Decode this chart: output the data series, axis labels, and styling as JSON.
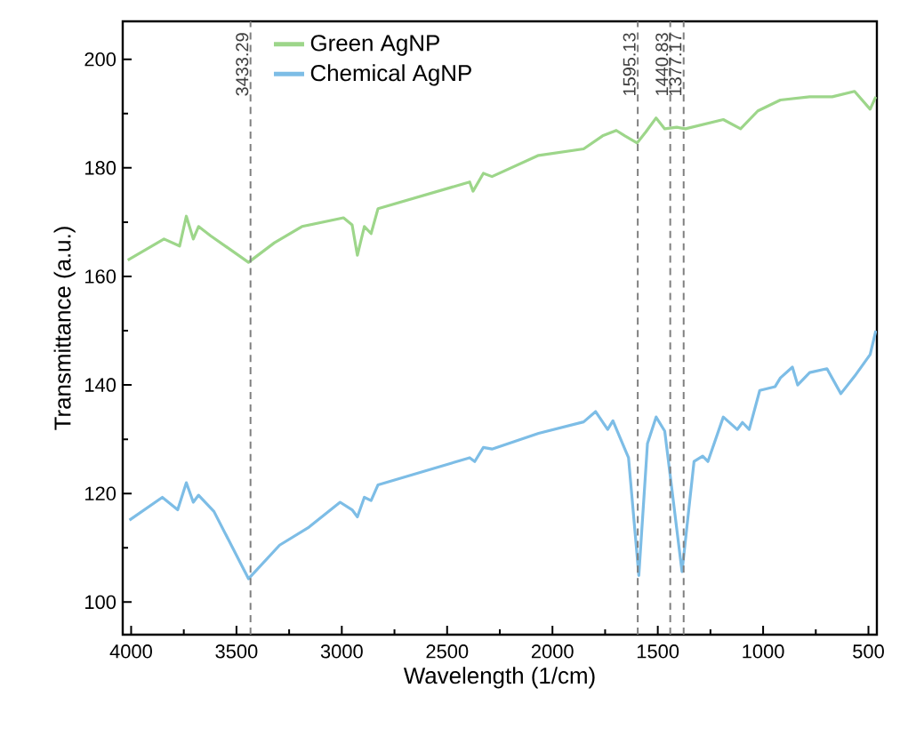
{
  "chart_data": {
    "type": "line",
    "xlabel": "Wavelength (1/cm)",
    "ylabel": "Transmittance (a.u.)",
    "xlim": [
      4040,
      460
    ],
    "ylim": [
      94,
      207
    ],
    "xticks": [
      4000,
      3500,
      3000,
      2500,
      2000,
      1500,
      1000,
      500
    ],
    "yticks": [
      100,
      120,
      140,
      160,
      180,
      200
    ],
    "legend": "top left",
    "grid": false,
    "marker": "none",
    "line_style": "solid",
    "series": [
      {
        "name": "Green AgNP",
        "color": "#9dd68a",
        "x": [
          4016,
          3844,
          3770,
          3738,
          3705,
          3680,
          3623,
          3443,
          3320,
          3189,
          2992,
          2951,
          2926,
          2893,
          2861,
          2828,
          2393,
          2377,
          2328,
          2287,
          2066,
          1852,
          1762,
          1697,
          1656,
          1598,
          1557,
          1508,
          1467,
          1410,
          1369,
          1189,
          1107,
          1025,
          918,
          779,
          672,
          566,
          492,
          465
        ],
        "values": [
          163.0,
          166.9,
          165.6,
          171.1,
          166.9,
          169.2,
          167.5,
          162.6,
          166.2,
          169.2,
          170.8,
          169.5,
          163.9,
          169.2,
          167.9,
          172.5,
          177.4,
          175.7,
          179.0,
          178.4,
          182.3,
          183.5,
          185.9,
          186.9,
          185.9,
          184.6,
          186.6,
          189.2,
          187.2,
          187.5,
          187.2,
          188.9,
          187.2,
          190.5,
          192.5,
          193.1,
          193.1,
          194.1,
          190.8,
          193.1
        ]
      },
      {
        "name": "Chemical AgNP",
        "color": "#7dbde6",
        "x": [
          4008,
          3852,
          3779,
          3738,
          3705,
          3680,
          3607,
          3443,
          3295,
          3156,
          3008,
          2951,
          2926,
          2893,
          2861,
          2828,
          2393,
          2369,
          2328,
          2287,
          2066,
          1852,
          1795,
          1738,
          1713,
          1639,
          1590,
          1549,
          1508,
          1467,
          1385,
          1328,
          1287,
          1262,
          1189,
          1123,
          1098,
          1066,
          1016,
          943,
          918,
          861,
          836,
          779,
          697,
          631,
          566,
          492,
          465
        ],
        "values": [
          115.1,
          119.3,
          117.0,
          122.0,
          118.4,
          119.7,
          116.7,
          104.3,
          110.5,
          113.8,
          118.4,
          117.0,
          115.7,
          119.3,
          118.7,
          121.6,
          126.6,
          125.9,
          128.5,
          128.2,
          131.1,
          133.2,
          135.1,
          131.8,
          133.4,
          126.6,
          104.9,
          129.2,
          134.1,
          131.5,
          105.6,
          125.9,
          126.9,
          125.9,
          134.1,
          131.8,
          133.1,
          131.8,
          139.0,
          139.7,
          141.3,
          143.3,
          140.0,
          142.3,
          143.0,
          138.4,
          141.6,
          145.6,
          150.0
        ]
      }
    ],
    "ref_lines": [
      {
        "axis": "x",
        "value": 3433.29,
        "label": "3433.29",
        "color": "#808080",
        "line_style": "dashed"
      },
      {
        "axis": "x",
        "value": 1595.13,
        "label": "1595.13",
        "color": "#808080",
        "line_style": "dashed"
      },
      {
        "axis": "x",
        "value": 1440.83,
        "label": "1440.83",
        "color": "#808080",
        "line_style": "dashed"
      },
      {
        "axis": "x",
        "value": 1377.17,
        "label": "1377.17",
        "color": "#808080",
        "line_style": "dashed"
      }
    ]
  }
}
